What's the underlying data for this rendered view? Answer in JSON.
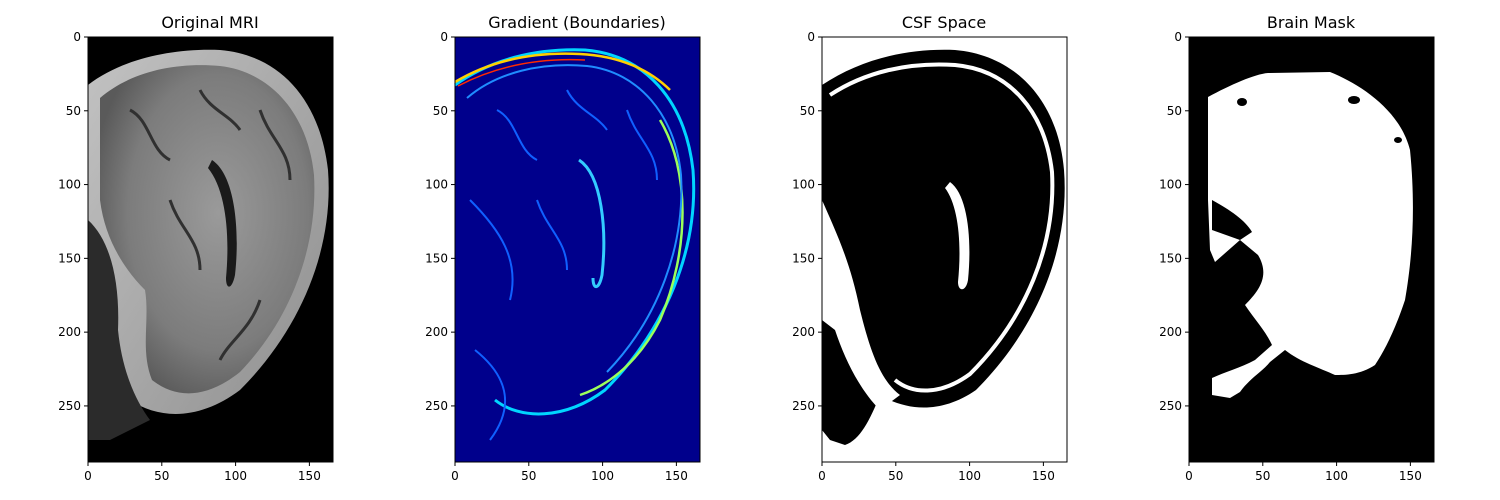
{
  "chart_data": [
    {
      "type": "heatmap",
      "title": "Original MRI",
      "colormap": "gray",
      "xlim": [
        0,
        166
      ],
      "ylim": [
        288,
        0
      ],
      "xticks": [
        0,
        50,
        100,
        150
      ],
      "yticks": [
        0,
        50,
        100,
        150,
        200,
        250
      ]
    },
    {
      "type": "heatmap",
      "title": "Gradient (Boundaries)",
      "colormap": "jet",
      "xlim": [
        0,
        166
      ],
      "ylim": [
        288,
        0
      ],
      "xticks": [
        0,
        50,
        100,
        150
      ],
      "yticks": [
        0,
        50,
        100,
        150,
        200,
        250
      ]
    },
    {
      "type": "heatmap",
      "title": "CSF Space",
      "colormap": "binary",
      "xlim": [
        0,
        166
      ],
      "ylim": [
        288,
        0
      ],
      "xticks": [
        0,
        50,
        100,
        150
      ],
      "yticks": [
        0,
        50,
        100,
        150,
        200,
        250
      ]
    },
    {
      "type": "heatmap",
      "title": "Brain Mask",
      "colormap": "binary",
      "xlim": [
        0,
        166
      ],
      "ylim": [
        288,
        0
      ],
      "xticks": [
        0,
        50,
        100,
        150
      ],
      "yticks": [
        0,
        50,
        100,
        150,
        200,
        250
      ]
    }
  ]
}
